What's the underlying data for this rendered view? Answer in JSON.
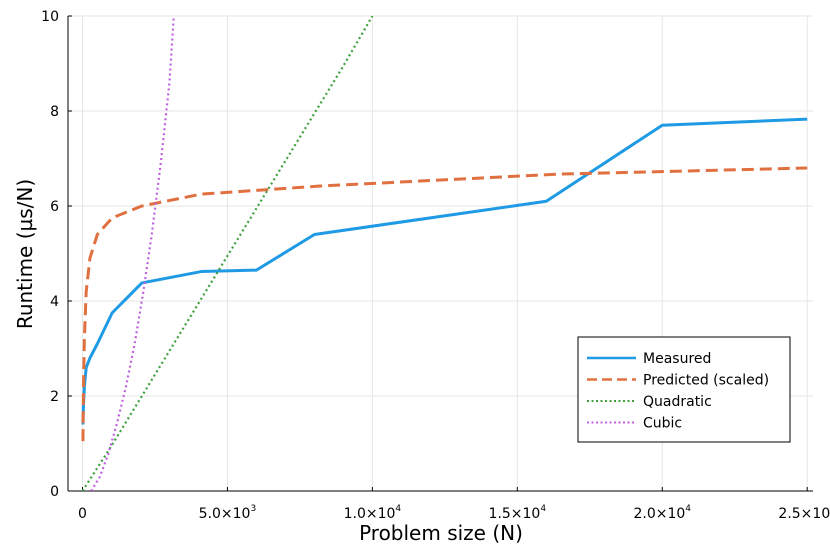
{
  "chart_data": {
    "type": "line",
    "title": "",
    "xlabel": "Problem size (N)",
    "ylabel": "Runtime (µs/N)",
    "xlim": [
      -500,
      25200
    ],
    "ylim": [
      0,
      10
    ],
    "grid": true,
    "legend_position": "bottom-right",
    "x_ticks": [
      {
        "value": 0,
        "mantissa": "0",
        "exponent": ""
      },
      {
        "value": 5000,
        "mantissa": "5.0×10",
        "exponent": "3"
      },
      {
        "value": 10000,
        "mantissa": "1.0×10",
        "exponent": "4"
      },
      {
        "value": 15000,
        "mantissa": "1.5×10",
        "exponent": "4"
      },
      {
        "value": 20000,
        "mantissa": "2.0×10",
        "exponent": "4"
      },
      {
        "value": 25000,
        "mantissa": "2.5×10",
        "exponent": "4"
      }
    ],
    "y_ticks": [
      0,
      2,
      4,
      6,
      8,
      10
    ],
    "series": [
      {
        "name": "Measured",
        "color": "#1f9ae4",
        "style": "solid",
        "x": [
          16,
          32,
          64,
          128,
          256,
          512,
          1024,
          2048,
          4096,
          6000,
          8000,
          16000,
          20000,
          25000
        ],
        "y": [
          1.4,
          1.8,
          2.2,
          2.6,
          2.8,
          3.1,
          3.75,
          4.38,
          4.62,
          4.65,
          5.4,
          6.1,
          7.7,
          7.83
        ]
      },
      {
        "name": "Predicted (scaled)",
        "color": "#e07040",
        "style": "dashed",
        "x": [
          16,
          32,
          64,
          128,
          256,
          512,
          1024,
          2048,
          4096,
          8192,
          16384,
          25000
        ],
        "y": [
          1.05,
          2.1,
          3.2,
          4.2,
          4.9,
          5.4,
          5.75,
          6.0,
          6.25,
          6.42,
          6.67,
          6.8
        ]
      },
      {
        "name": "Quadratic",
        "color": "#3da03d",
        "style": "dotted",
        "x": [
          0,
          1000,
          2000,
          3000,
          4000,
          5000,
          6000,
          7000,
          8000,
          9000,
          10000
        ],
        "y": [
          0.0,
          0.95,
          1.95,
          2.95,
          3.95,
          4.95,
          5.95,
          6.95,
          7.95,
          8.95,
          10.0
        ]
      },
      {
        "name": "Cubic",
        "color": "#c060e0",
        "style": "dotted",
        "x": [
          300,
          600,
          900,
          1200,
          1500,
          1800,
          2100,
          2400,
          2700,
          3000,
          3150
        ],
        "y": [
          0.0,
          0.3,
          0.8,
          1.45,
          2.2,
          3.1,
          4.2,
          5.45,
          6.9,
          8.6,
          10.0
        ]
      }
    ]
  }
}
